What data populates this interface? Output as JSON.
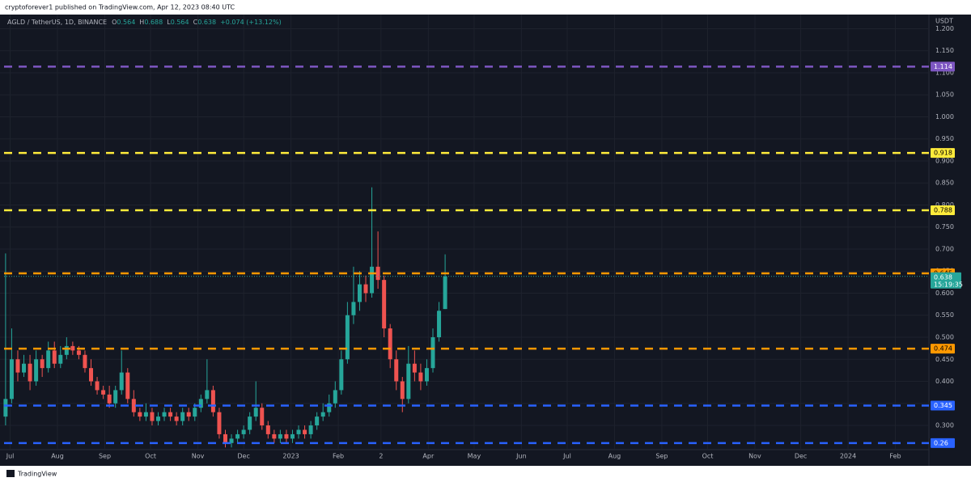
{
  "header": {
    "published": "cryptoforever1 published on TradingView.com, Apr 12, 2023 08:40 UTC",
    "symbol": "AGLD / TetherUS, 1D, BINANCE",
    "ohlc_labels": [
      "O",
      "H",
      "L",
      "C"
    ],
    "change": "+0.074 (+13.12%)"
  },
  "footer": {
    "brand": "TradingView"
  },
  "chart_data": {
    "type": "candlestick",
    "axis_unit": "USDT",
    "countdown": "15:19:35",
    "up_color": "#26a69a",
    "down_color": "#ef5350",
    "grid": true,
    "x": [
      -3,
      1,
      5,
      9,
      13,
      17,
      21,
      25,
      29,
      33,
      37,
      41,
      45,
      49,
      53,
      57,
      61,
      65,
      69,
      73,
      77,
      81,
      85,
      89,
      93,
      97,
      101,
      105,
      109,
      113,
      117,
      121,
      125,
      129,
      133,
      137,
      141,
      145,
      149,
      153,
      157,
      161,
      165,
      169,
      173,
      177,
      181,
      185,
      189,
      193,
      197,
      201,
      205,
      209,
      213,
      217,
      221,
      225,
      229,
      233,
      237,
      241,
      245,
      249,
      253,
      257,
      261,
      265,
      269,
      273,
      277,
      281,
      285
    ],
    "open": [
      0.32,
      0.36,
      0.45,
      0.42,
      0.44,
      0.4,
      0.45,
      0.43,
      0.47,
      0.44,
      0.46,
      0.48,
      0.47,
      0.46,
      0.43,
      0.4,
      0.38,
      0.37,
      0.35,
      0.38,
      0.42,
      0.36,
      0.33,
      0.32,
      0.33,
      0.31,
      0.32,
      0.33,
      0.32,
      0.31,
      0.33,
      0.32,
      0.34,
      0.36,
      0.38,
      0.33,
      0.28,
      0.26,
      0.27,
      0.28,
      0.29,
      0.32,
      0.34,
      0.3,
      0.28,
      0.27,
      0.28,
      0.27,
      0.28,
      0.29,
      0.28,
      0.3,
      0.32,
      0.33,
      0.35,
      0.38,
      0.45,
      0.55,
      0.58,
      0.62,
      0.6,
      0.66,
      0.63,
      0.52,
      0.45,
      0.4,
      0.36,
      0.44,
      0.42,
      0.4,
      0.43,
      0.5,
      0.564
    ],
    "high": [
      0.69,
      0.52,
      0.47,
      0.46,
      0.46,
      0.47,
      0.46,
      0.49,
      0.49,
      0.48,
      0.5,
      0.49,
      0.48,
      0.47,
      0.45,
      0.41,
      0.39,
      0.39,
      0.39,
      0.47,
      0.43,
      0.38,
      0.34,
      0.35,
      0.34,
      0.33,
      0.34,
      0.34,
      0.33,
      0.34,
      0.34,
      0.35,
      0.37,
      0.45,
      0.39,
      0.34,
      0.29,
      0.28,
      0.29,
      0.3,
      0.33,
      0.4,
      0.35,
      0.31,
      0.29,
      0.29,
      0.29,
      0.29,
      0.3,
      0.3,
      0.31,
      0.33,
      0.35,
      0.37,
      0.4,
      0.47,
      0.58,
      0.66,
      0.65,
      0.64,
      0.84,
      0.74,
      0.64,
      0.53,
      0.47,
      0.41,
      0.48,
      0.47,
      0.44,
      0.45,
      0.52,
      0.58,
      0.688
    ],
    "low": [
      0.3,
      0.35,
      0.4,
      0.41,
      0.38,
      0.39,
      0.41,
      0.42,
      0.43,
      0.43,
      0.45,
      0.46,
      0.45,
      0.42,
      0.39,
      0.37,
      0.36,
      0.34,
      0.34,
      0.37,
      0.35,
      0.32,
      0.31,
      0.31,
      0.3,
      0.3,
      0.31,
      0.31,
      0.3,
      0.3,
      0.31,
      0.31,
      0.33,
      0.35,
      0.32,
      0.27,
      0.25,
      0.25,
      0.26,
      0.27,
      0.28,
      0.31,
      0.29,
      0.27,
      0.26,
      0.26,
      0.26,
      0.26,
      0.27,
      0.27,
      0.27,
      0.29,
      0.31,
      0.32,
      0.34,
      0.37,
      0.44,
      0.53,
      0.56,
      0.58,
      0.59,
      0.61,
      0.5,
      0.43,
      0.38,
      0.33,
      0.35,
      0.4,
      0.38,
      0.39,
      0.42,
      0.49,
      0.564
    ],
    "close": [
      0.36,
      0.45,
      0.42,
      0.44,
      0.4,
      0.45,
      0.43,
      0.47,
      0.44,
      0.46,
      0.48,
      0.47,
      0.46,
      0.43,
      0.4,
      0.38,
      0.37,
      0.35,
      0.38,
      0.42,
      0.36,
      0.33,
      0.32,
      0.33,
      0.31,
      0.32,
      0.33,
      0.32,
      0.31,
      0.33,
      0.32,
      0.34,
      0.36,
      0.38,
      0.33,
      0.28,
      0.26,
      0.27,
      0.28,
      0.29,
      0.32,
      0.34,
      0.3,
      0.28,
      0.27,
      0.28,
      0.27,
      0.28,
      0.29,
      0.28,
      0.3,
      0.32,
      0.33,
      0.35,
      0.38,
      0.45,
      0.55,
      0.58,
      0.62,
      0.6,
      0.66,
      0.63,
      0.52,
      0.45,
      0.4,
      0.36,
      0.44,
      0.42,
      0.4,
      0.43,
      0.5,
      0.56,
      0.638
    ],
    "levels": [
      {
        "value": 1.114,
        "color": "#7e57c2",
        "text_color": "#ffffff"
      },
      {
        "value": 0.918,
        "color": "#ffeb3b",
        "text_color": "#000000"
      },
      {
        "value": 0.788,
        "color": "#ffeb3b",
        "text_color": "#000000"
      },
      {
        "value": 0.645,
        "color": "#ff9800",
        "text_color": "#000000"
      },
      {
        "value": 0.474,
        "color": "#ff9800",
        "text_color": "#000000"
      },
      {
        "value": 0.345,
        "color": "#2962ff",
        "text_color": "#ffffff"
      },
      {
        "value": 0.26,
        "color": "#2962ff",
        "text_color": "#ffffff"
      }
    ],
    "xlim": [
      -4,
      602
    ],
    "ylim": [
      0.245,
      1.232
    ],
    "xticks": [
      {
        "value": 0,
        "label": "Jul"
      },
      {
        "value": 31,
        "label": "Aug"
      },
      {
        "value": 62,
        "label": "Sep"
      },
      {
        "value": 92,
        "label": "Oct"
      },
      {
        "value": 123,
        "label": "Nov"
      },
      {
        "value": 153,
        "label": "Dec"
      },
      {
        "value": 184,
        "label": "2023"
      },
      {
        "value": 215,
        "label": "Feb"
      },
      {
        "value": 243,
        "label": "2"
      },
      {
        "value": 274,
        "label": "Apr"
      },
      {
        "value": 304,
        "label": "May"
      },
      {
        "value": 335,
        "label": "Jun"
      },
      {
        "value": 365,
        "label": "Jul"
      },
      {
        "value": 396,
        "label": "Aug"
      },
      {
        "value": 427,
        "label": "Sep"
      },
      {
        "value": 457,
        "label": "Oct"
      },
      {
        "value": 488,
        "label": "Nov"
      },
      {
        "value": 518,
        "label": "Dec"
      },
      {
        "value": 549,
        "label": "2024"
      },
      {
        "value": 580,
        "label": "Feb"
      }
    ],
    "yticks": [
      {
        "value": 0.3,
        "label": "0.300"
      },
      {
        "value": 0.35,
        "label": "0.350"
      },
      {
        "value": 0.4,
        "label": "0.400"
      },
      {
        "value": 0.45,
        "label": "0.450"
      },
      {
        "value": 0.5,
        "label": "0.500"
      },
      {
        "value": 0.55,
        "label": "0.550"
      },
      {
        "value": 0.6,
        "label": "0.600"
      },
      {
        "value": 0.65,
        "label": "0.650"
      },
      {
        "value": 0.7,
        "label": "0.700"
      },
      {
        "value": 0.75,
        "label": "0.750"
      },
      {
        "value": 0.8,
        "label": "0.800"
      },
      {
        "value": 0.85,
        "label": "0.850"
      },
      {
        "value": 0.9,
        "label": "0.900"
      },
      {
        "value": 0.95,
        "label": "0.950"
      },
      {
        "value": 1.0,
        "label": "1.000"
      },
      {
        "value": 1.05,
        "label": "1.050"
      },
      {
        "value": 1.1,
        "label": "1.100"
      },
      {
        "value": 1.15,
        "label": "1.150"
      },
      {
        "value": 1.2,
        "label": "1.200"
      }
    ]
  }
}
